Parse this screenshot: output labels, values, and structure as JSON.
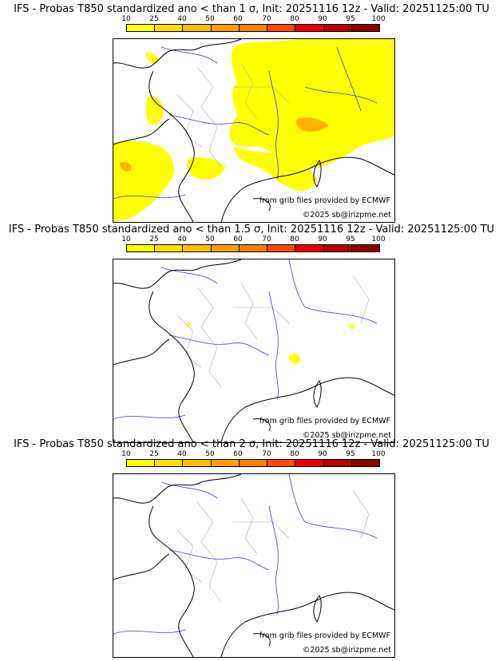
{
  "panels": [
    {
      "title": "IFS - Probas T850  standardized ano < than 1 σ, Init: 20251116 12z - Valid: 20251125:00 TU",
      "threshold_sigma": 1
    },
    {
      "title": "IFS - Probas T850  standardized ano < than 1.5 σ, Init: 20251116 12z - Valid: 20251125:00 TU",
      "threshold_sigma": 1.5
    },
    {
      "title": "IFS - Probas T850  standardized ano < than 2 σ, Init: 20251116 12z - Valid: 20251125:00 TU",
      "threshold_sigma": 2
    }
  ],
  "colorbar": {
    "ticks": [
      "10",
      "25",
      "40",
      "50",
      "60",
      "70",
      "80",
      "90",
      "95",
      "100"
    ],
    "colors": [
      "#ffff00",
      "#ffdf00",
      "#ffbf00",
      "#ff9f00",
      "#ff7f00",
      "#ff4a00",
      "#e60000",
      "#b50000",
      "#8c0000"
    ]
  },
  "credits": {
    "source": "from grib files provided by ECMWF",
    "copyright": "©2025 sb@irizpme.net"
  },
  "colors": {
    "probability_area": "#ffff00",
    "probability_high": "#ffb000",
    "coastline": "#000000",
    "rivers": "#3a3ae0",
    "borders": "#aaaaaa"
  }
}
